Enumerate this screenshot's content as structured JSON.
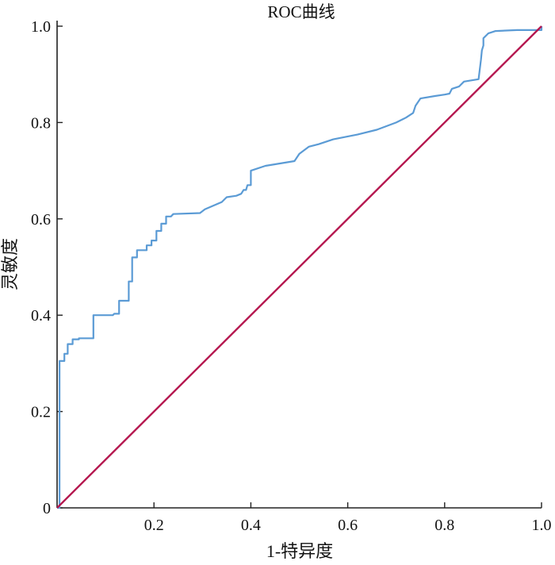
{
  "chart_data": {
    "type": "line",
    "title": "ROC曲线",
    "xlabel": "1-特异度",
    "ylabel": "灵敏度",
    "xlim": [
      0,
      1
    ],
    "ylim": [
      0,
      1
    ],
    "x_ticks": [
      "0.2",
      "0.4",
      "0.6",
      "0.8",
      "1.0"
    ],
    "y_ticks": [
      "0",
      "0.2",
      "0.4",
      "0.6",
      "0.8",
      "1.0"
    ],
    "grid": false,
    "series": [
      {
        "color": "#5b9bd5",
        "points": [
          [
            0.0,
            0.0
          ],
          [
            0.0,
            0.0
          ],
          [
            0.005,
            0.0
          ],
          [
            0.005,
            0.305
          ],
          [
            0.015,
            0.305
          ],
          [
            0.015,
            0.32
          ],
          [
            0.022,
            0.32
          ],
          [
            0.022,
            0.34
          ],
          [
            0.032,
            0.34
          ],
          [
            0.032,
            0.35
          ],
          [
            0.045,
            0.35
          ],
          [
            0.045,
            0.352
          ],
          [
            0.075,
            0.352
          ],
          [
            0.075,
            0.4
          ],
          [
            0.115,
            0.4
          ],
          [
            0.118,
            0.403
          ],
          [
            0.128,
            0.403
          ],
          [
            0.128,
            0.43
          ],
          [
            0.148,
            0.43
          ],
          [
            0.148,
            0.47
          ],
          [
            0.155,
            0.47
          ],
          [
            0.155,
            0.52
          ],
          [
            0.165,
            0.52
          ],
          [
            0.165,
            0.535
          ],
          [
            0.185,
            0.535
          ],
          [
            0.185,
            0.545
          ],
          [
            0.195,
            0.545
          ],
          [
            0.195,
            0.555
          ],
          [
            0.205,
            0.555
          ],
          [
            0.205,
            0.575
          ],
          [
            0.215,
            0.575
          ],
          [
            0.215,
            0.59
          ],
          [
            0.225,
            0.59
          ],
          [
            0.225,
            0.605
          ],
          [
            0.235,
            0.605
          ],
          [
            0.24,
            0.61
          ],
          [
            0.295,
            0.612
          ],
          [
            0.305,
            0.62
          ],
          [
            0.34,
            0.635
          ],
          [
            0.35,
            0.645
          ],
          [
            0.37,
            0.648
          ],
          [
            0.38,
            0.652
          ],
          [
            0.385,
            0.66
          ],
          [
            0.39,
            0.66
          ],
          [
            0.393,
            0.67
          ],
          [
            0.4,
            0.67
          ],
          [
            0.4,
            0.7
          ],
          [
            0.43,
            0.71
          ],
          [
            0.49,
            0.72
          ],
          [
            0.5,
            0.735
          ],
          [
            0.52,
            0.75
          ],
          [
            0.54,
            0.755
          ],
          [
            0.57,
            0.765
          ],
          [
            0.62,
            0.775
          ],
          [
            0.66,
            0.785
          ],
          [
            0.7,
            0.8
          ],
          [
            0.72,
            0.81
          ],
          [
            0.735,
            0.82
          ],
          [
            0.74,
            0.835
          ],
          [
            0.75,
            0.85
          ],
          [
            0.78,
            0.855
          ],
          [
            0.8,
            0.858
          ],
          [
            0.81,
            0.86
          ],
          [
            0.815,
            0.87
          ],
          [
            0.83,
            0.875
          ],
          [
            0.84,
            0.885
          ],
          [
            0.87,
            0.89
          ],
          [
            0.875,
            0.93
          ],
          [
            0.877,
            0.95
          ],
          [
            0.88,
            0.96
          ],
          [
            0.88,
            0.975
          ],
          [
            0.89,
            0.985
          ],
          [
            0.905,
            0.99
          ],
          [
            0.95,
            0.992
          ],
          [
            1.0,
            0.992
          ],
          [
            1.0,
            1.0
          ]
        ]
      },
      {
        "color": "#b5174f",
        "points": [
          [
            0.0,
            0.0
          ],
          [
            1.0,
            1.0
          ]
        ]
      }
    ]
  }
}
